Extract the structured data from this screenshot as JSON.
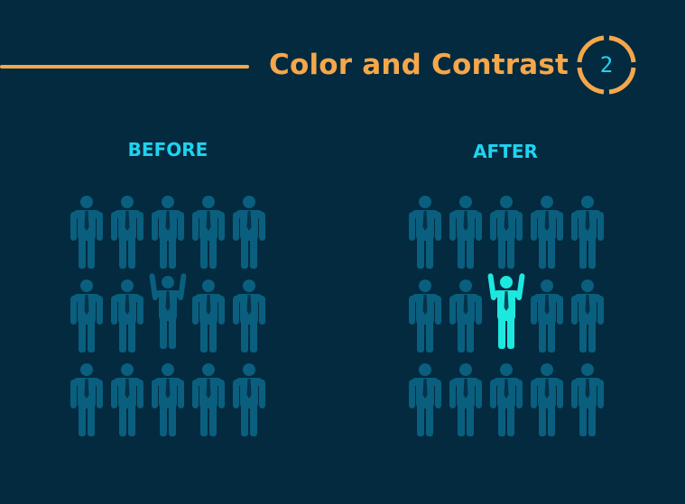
{
  "header": {
    "title": "Color and Contrast",
    "step_number": "2"
  },
  "panels": [
    {
      "label": "BEFORE",
      "rows": 3,
      "cols": 5,
      "highlight": {
        "row": 1,
        "col": 2,
        "pose": "arms-raised",
        "color": "#0a5f7e"
      }
    },
    {
      "label": "AFTER",
      "rows": 3,
      "cols": 5,
      "highlight": {
        "row": 1,
        "col": 2,
        "pose": "arms-raised",
        "color": "#1de8df"
      }
    }
  ],
  "colors": {
    "background": "#032a3f",
    "accent": "#f5a74a",
    "label": "#1fd3ef",
    "figure": "#0a5f7e",
    "highlight": "#1de8df"
  }
}
